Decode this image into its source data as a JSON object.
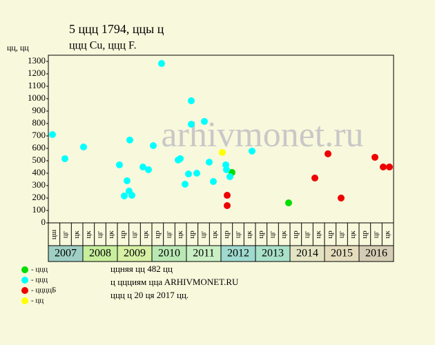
{
  "chart_data": {
    "type": "scatter",
    "title": "5 ццц 1794, ццы ц",
    "subtitle": "ццц Cu, ццц F.",
    "ylabel": "цц, цц",
    "watermark": "arhivmonet.ru",
    "xlim": [
      2007,
      2017
    ],
    "ylim": [
      0,
      1300
    ],
    "yticks": [
      0,
      100,
      200,
      300,
      400,
      500,
      600,
      700,
      800,
      900,
      1000,
      1100,
      1200,
      1300
    ],
    "grid": false,
    "years": [
      "2007",
      "2008",
      "2009",
      "2010",
      "2011",
      "2012",
      "2013",
      "2014",
      "2015",
      "2016"
    ],
    "year_colors": [
      "#9fcfc4",
      "#c6ee9c",
      "#d6f0a4",
      "#b9e8b4",
      "#c9efc4",
      "#9fd9cf",
      "#a9e1c9",
      "#e4e4c4",
      "#e4dcbc",
      "#d4ccb4"
    ],
    "periods": [
      "цш",
      "цг",
      "цк",
      "цк",
      "цг",
      "цк",
      "цр",
      "цг",
      "цк",
      "цр",
      "цг",
      "цк",
      "цр",
      "цг",
      "цк",
      "цр",
      "цг",
      "цк",
      "цр",
      "цг",
      "цк",
      "цр",
      "цг",
      "цк",
      "цр",
      "цг",
      "цк",
      "цр",
      "цг",
      "цк"
    ],
    "series": [
      {
        "name": "- ццц",
        "color": "#00dd00",
        "x": [
          2012.32,
          2013.96
        ],
        "values": [
          406,
          161
        ]
      },
      {
        "name": "- ццц",
        "color": "#00ffff",
        "x": [
          2007.12,
          2007.48,
          2008.02,
          2009.06,
          2009.2,
          2009.28,
          2009.34,
          2009.36,
          2009.42,
          2009.74,
          2009.9,
          2010.04,
          2010.28,
          2010.76,
          2010.82,
          2010.96,
          2011.06,
          2011.14,
          2011.14,
          2011.3,
          2011.52,
          2011.66,
          2011.78,
          2012.14,
          2012.16,
          2012.26,
          2012.9
        ],
        "values": [
          711,
          517,
          611,
          467,
          217,
          339,
          256,
          667,
          222,
          450,
          428,
          622,
          1283,
          506,
          517,
          311,
          394,
          983,
          794,
          400,
          817,
          489,
          333,
          467,
          428,
          372,
          578
        ]
      },
      {
        "name": "- ццццБ",
        "color": "#ee0000",
        "x": [
          2012.18,
          2012.18,
          2014.72,
          2015.1,
          2015.48,
          2016.46,
          2016.7,
          2016.88
        ],
        "values": [
          222,
          139,
          361,
          556,
          200,
          528,
          450,
          450
        ]
      },
      {
        "name": "- цц",
        "color": "#ffff00",
        "x": [
          2012.04
        ],
        "values": [
          567
        ]
      }
    ],
    "notes": [
      "ццняя цц 482 цц",
      "ц ццциям ццa ARHIVMONET.RU",
      "ццц ц 20 ця 2017 цц."
    ]
  }
}
